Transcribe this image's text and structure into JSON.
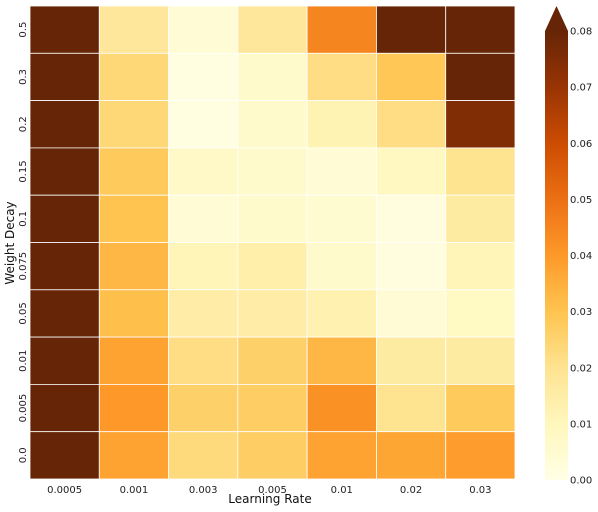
{
  "chart_data": {
    "type": "heatmap",
    "xlabel": "Learning Rate",
    "ylabel": "Weight Decay",
    "x_categories": [
      "0.0005",
      "0.001",
      "0.003",
      "0.005",
      "0.01",
      "0.02",
      "0.03"
    ],
    "y_categories": [
      "0.5",
      "0.3",
      "0.2",
      "0.15",
      "0.1",
      "0.075",
      "0.05",
      "0.01",
      "0.005",
      "0.0"
    ],
    "values": [
      [
        0.085,
        0.018,
        0.004,
        0.018,
        0.045,
        0.085,
        0.085
      ],
      [
        0.085,
        0.024,
        0.001,
        0.006,
        0.022,
        0.029,
        0.085
      ],
      [
        0.085,
        0.024,
        0.001,
        0.006,
        0.012,
        0.022,
        0.075
      ],
      [
        0.085,
        0.028,
        0.007,
        0.006,
        0.004,
        0.009,
        0.02
      ],
      [
        0.085,
        0.03,
        0.004,
        0.006,
        0.005,
        0.002,
        0.016
      ],
      [
        0.085,
        0.033,
        0.011,
        0.014,
        0.006,
        0.002,
        0.011
      ],
      [
        0.085,
        0.031,
        0.015,
        0.015,
        0.013,
        0.004,
        0.008
      ],
      [
        0.085,
        0.038,
        0.022,
        0.026,
        0.033,
        0.016,
        0.016
      ],
      [
        0.085,
        0.04,
        0.026,
        0.027,
        0.042,
        0.02,
        0.028
      ],
      [
        0.085,
        0.038,
        0.023,
        0.027,
        0.038,
        0.037,
        0.039
      ]
    ],
    "colorbar": {
      "min": 0.0,
      "max": 0.08,
      "ticks": [
        "0.00",
        "0.01",
        "0.02",
        "0.03",
        "0.04",
        "0.05",
        "0.06",
        "0.07",
        "0.08"
      ],
      "extend": "max",
      "colormap": "YlOrBr"
    }
  }
}
